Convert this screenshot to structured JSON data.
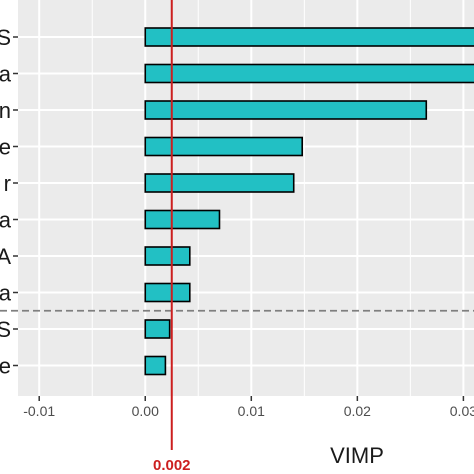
{
  "chart_data": {
    "type": "bar",
    "orientation": "horizontal",
    "categories": [
      "S",
      "a",
      "n",
      "e",
      "r",
      "a",
      "A",
      "a",
      "S",
      "e"
    ],
    "values": [
      0.0325,
      0.032,
      0.0265,
      0.0148,
      0.014,
      0.007,
      0.0042,
      0.0042,
      0.0023,
      0.0019
    ],
    "xlabel": "VIMP",
    "ylabel": "",
    "title": "",
    "xlim": [
      -0.012,
      0.031
    ],
    "xticks": [
      -0.01,
      0.0,
      0.01,
      0.02,
      0.03
    ],
    "xtick_labels": [
      "-0.01",
      "0.00",
      "0.01",
      "0.02",
      "0.03"
    ],
    "reference_line": {
      "x": 0.0025,
      "label": "0.002"
    },
    "separator_after_index": 7,
    "grid": true,
    "legend": "none"
  },
  "colors": {
    "bar_fill": "#22c0c4",
    "bar_stroke": "#000000",
    "panel_bg": "#ebebeb",
    "grid": "#ffffff",
    "reference_line": "#cc1f1f",
    "separator": "#7f7f7f"
  }
}
